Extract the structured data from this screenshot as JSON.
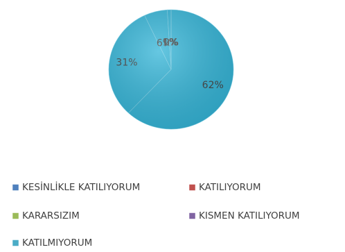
{
  "chart_data": {
    "type": "pie",
    "categories": [
      "KESİNLİKLE KATILIYORUM",
      "KATILIYORUM",
      "KARARSIZIM",
      "KISMEN KATILIYORUM",
      "KATILMIYORUM"
    ],
    "values": [
      62,
      31,
      6,
      1,
      0
    ],
    "value_labels": [
      "62%",
      "31%",
      "6%",
      "1%",
      "0%"
    ],
    "colors": [
      "#4f81bd",
      "#c0504d",
      "#9bbb59",
      "#8064a2",
      "#4bacc6"
    ],
    "slice_color": "#33b5d8"
  }
}
